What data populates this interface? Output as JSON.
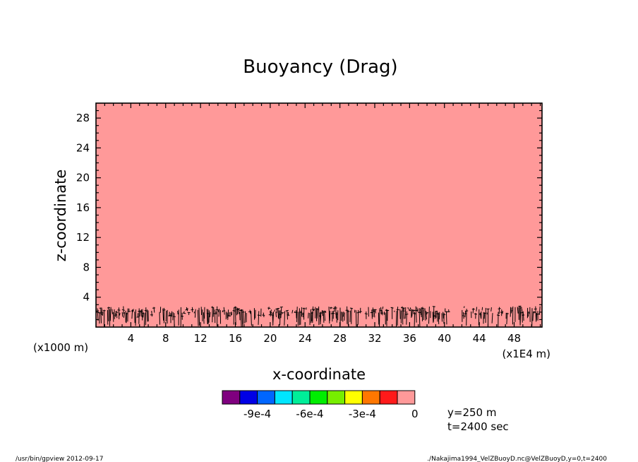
{
  "chart_data": {
    "type": "heatmap",
    "title": "Buoyancy (Drag)",
    "xlabel": "x-coordinate",
    "ylabel": "z-coordinate",
    "x_unit_left": "(x1000 m)",
    "x_unit_right": "(x1E4 m)",
    "xlim": [
      0,
      51.2
    ],
    "ylim": [
      0,
      30
    ],
    "x_ticks": [
      4,
      8,
      12,
      16,
      20,
      24,
      28,
      32,
      36,
      40,
      44,
      48
    ],
    "y_ticks": [
      4,
      8,
      12,
      16,
      20,
      24,
      28
    ],
    "background_color": "#ff9999",
    "noise_top_z": 2.8,
    "colorbar": {
      "colors": [
        "#7f007f",
        "#0000e6",
        "#0066ff",
        "#00e6ff",
        "#00ee99",
        "#00ee00",
        "#77ee00",
        "#ffff00",
        "#ff7700",
        "#ff1a1a",
        "#ff9999"
      ],
      "tick_labels": [
        "-9e-4",
        "-6e-4",
        "-3e-4",
        "0"
      ],
      "tick_box_index": [
        2,
        5,
        8,
        11
      ]
    },
    "annotations": [
      "y=250 m",
      "t=2400 sec"
    ]
  },
  "footer": {
    "left": "/usr/bin/gpview  2012-09-17",
    "right": "./Nakajima1994_VelZBuoyD.nc@VelZBuoyD,y=0,t=2400"
  }
}
